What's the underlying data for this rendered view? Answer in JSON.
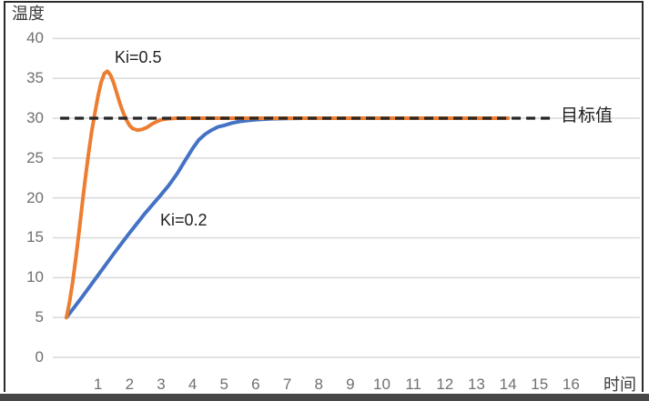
{
  "chart_data": {
    "type": "line",
    "title": "",
    "xlabel": "时间",
    "ylabel": "温度",
    "x_ticks": [
      1,
      2,
      3,
      4,
      5,
      6,
      7,
      8,
      9,
      10,
      11,
      12,
      13,
      14,
      15,
      16
    ],
    "y_ticks": [
      0,
      5,
      10,
      15,
      20,
      25,
      30,
      35,
      40
    ],
    "x_range": [
      0,
      16
    ],
    "y_range": [
      0,
      40
    ],
    "grid": true,
    "legend_position": "none",
    "target_line": {
      "value": 30,
      "label": "目标值",
      "style": "dashed",
      "x_start": -0.2,
      "x_end": 15.5,
      "color": "#262626"
    },
    "series": [
      {
        "name": "Ki=0.2",
        "color": "#4472C4",
        "points": [
          [
            0,
            5
          ],
          [
            0.5,
            7.6
          ],
          [
            1,
            10.3
          ],
          [
            1.5,
            13
          ],
          [
            2,
            15.6
          ],
          [
            2.5,
            18.1
          ],
          [
            3,
            20.4
          ],
          [
            3.25,
            21.6
          ],
          [
            3.5,
            23
          ],
          [
            3.75,
            24.6
          ],
          [
            4,
            26.2
          ],
          [
            4.2,
            27.3
          ],
          [
            4.4,
            28
          ],
          [
            4.6,
            28.5
          ],
          [
            4.8,
            28.9
          ],
          [
            5,
            29.1
          ],
          [
            5.25,
            29.4
          ],
          [
            5.5,
            29.6
          ],
          [
            5.75,
            29.72
          ],
          [
            6,
            29.82
          ],
          [
            6.5,
            29.93
          ],
          [
            7,
            29.98
          ],
          [
            7.5,
            30
          ],
          [
            8,
            30
          ],
          [
            9,
            30
          ],
          [
            10,
            30
          ],
          [
            11,
            30
          ],
          [
            12,
            30
          ],
          [
            13,
            30
          ],
          [
            14,
            30
          ]
        ]
      },
      {
        "name": "Ki=0.5",
        "color": "#ED7D31",
        "points": [
          [
            0,
            5
          ],
          [
            0.1,
            7
          ],
          [
            0.2,
            9.5
          ],
          [
            0.3,
            12.5
          ],
          [
            0.4,
            15.8
          ],
          [
            0.5,
            19.2
          ],
          [
            0.6,
            22.5
          ],
          [
            0.7,
            25.6
          ],
          [
            0.8,
            28.3
          ],
          [
            0.9,
            30.6
          ],
          [
            1,
            32.8
          ],
          [
            1.1,
            34.5
          ],
          [
            1.2,
            35.6
          ],
          [
            1.3,
            35.9
          ],
          [
            1.4,
            35.4
          ],
          [
            1.5,
            34.4
          ],
          [
            1.6,
            33.1
          ],
          [
            1.7,
            31.8
          ],
          [
            1.8,
            30.7
          ],
          [
            1.9,
            29.8
          ],
          [
            2,
            29.1
          ],
          [
            2.1,
            28.7
          ],
          [
            2.25,
            28.5
          ],
          [
            2.4,
            28.6
          ],
          [
            2.55,
            28.85
          ],
          [
            2.7,
            29.25
          ],
          [
            2.85,
            29.55
          ],
          [
            3,
            29.8
          ],
          [
            3.2,
            29.93
          ],
          [
            3.5,
            30
          ],
          [
            4,
            30
          ],
          [
            5,
            30
          ],
          [
            6,
            30
          ],
          [
            7,
            30
          ],
          [
            8,
            30
          ],
          [
            9,
            30
          ],
          [
            10,
            30
          ],
          [
            11,
            30
          ],
          [
            12,
            30
          ],
          [
            13,
            30
          ],
          [
            14,
            30
          ]
        ]
      }
    ],
    "annotations": {
      "ki05": "Ki=0.5",
      "ki02": "Ki=0.2",
      "target": "目标值"
    }
  },
  "colors": {
    "gridline": "#D9D9D9",
    "tick_text": "#707070",
    "axis_title_text": "#3a3a3a",
    "annotation_text": "#1f1f1f",
    "series_ki02": "#4472C4",
    "series_ki05": "#ED7D31",
    "target_dash": "#262626",
    "frame_border": "#2b2b2b",
    "bottom_bar": "#474747"
  }
}
